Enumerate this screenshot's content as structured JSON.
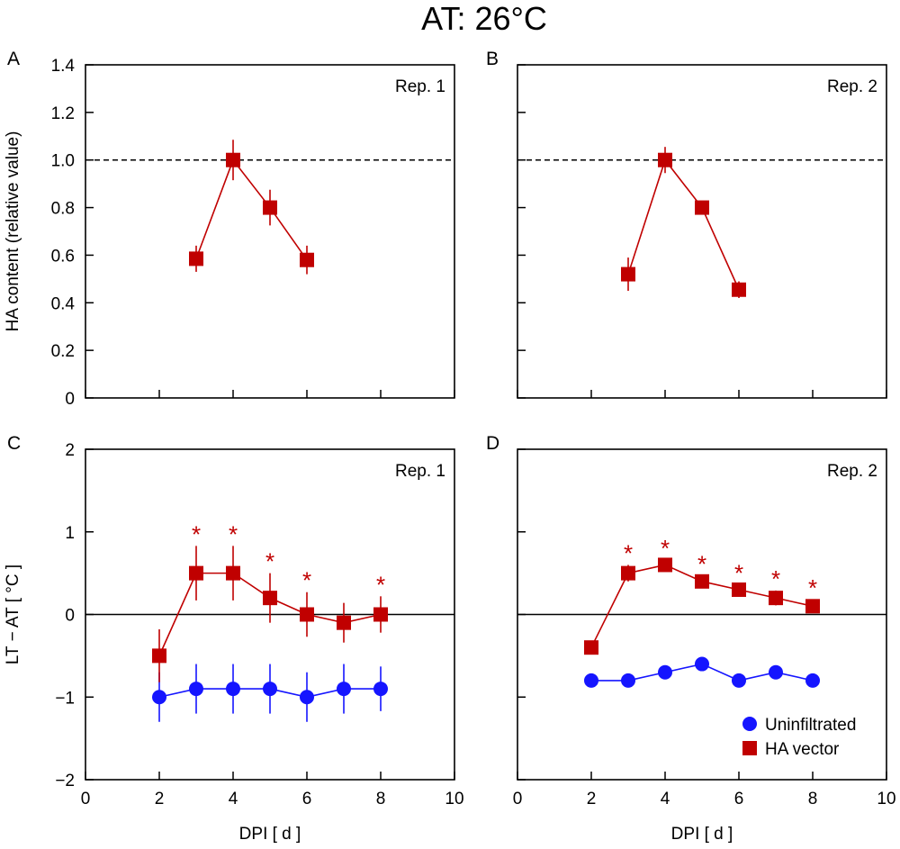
{
  "figure_title": "AT: 26°C",
  "colors": {
    "ha_vector": "#c00000",
    "uninfiltrated": "#1515ff",
    "axis": "#000000"
  },
  "legend": {
    "uninfiltrated": "Uninfiltrated",
    "ha_vector": "HA vector"
  },
  "chart_data": [
    {
      "id": "A",
      "type": "line",
      "panel_label": "A",
      "replicate_label": "Rep. 1",
      "ylabel": "HA content (relative value)",
      "xlabel": "",
      "xlim": [
        0,
        10
      ],
      "ylim": [
        0,
        1.4
      ],
      "xticks": [
        0,
        2,
        4,
        6,
        8,
        10
      ],
      "xtick_labels_shown": false,
      "yticks": [
        0,
        0.2,
        0.4,
        0.6,
        0.8,
        1.0,
        1.2,
        1.4
      ],
      "ytick_labels_shown": true,
      "ytick_labels": [
        "0",
        "0.2",
        "0.4",
        "0.6",
        "0.8",
        "1.0",
        "1.2",
        "1.4"
      ],
      "reference_line": {
        "y": 1.0,
        "style": "dashed"
      },
      "series": [
        {
          "name": "HA vector",
          "marker": "square",
          "x": [
            3,
            4,
            5,
            6
          ],
          "y": [
            0.585,
            1.0,
            0.8,
            0.58
          ],
          "err": [
            0.055,
            0.085,
            0.075,
            0.06
          ],
          "significant": []
        }
      ]
    },
    {
      "id": "B",
      "type": "line",
      "panel_label": "B",
      "replicate_label": "Rep. 2",
      "ylabel": "",
      "xlabel": "",
      "xlim": [
        0,
        10
      ],
      "ylim": [
        0,
        1.4
      ],
      "xticks": [
        0,
        2,
        4,
        6,
        8,
        10
      ],
      "xtick_labels_shown": false,
      "yticks": [
        0,
        0.2,
        0.4,
        0.6,
        0.8,
        1.0,
        1.2,
        1.4
      ],
      "ytick_labels_shown": false,
      "reference_line": {
        "y": 1.0,
        "style": "dashed"
      },
      "series": [
        {
          "name": "HA vector",
          "marker": "square",
          "x": [
            3,
            4,
            5,
            6
          ],
          "y": [
            0.52,
            1.0,
            0.8,
            0.455
          ],
          "err": [
            0.07,
            0.055,
            0.02,
            0.035
          ],
          "significant": []
        }
      ]
    },
    {
      "id": "C",
      "type": "line",
      "panel_label": "C",
      "replicate_label": "Rep. 1",
      "ylabel": "LT − AT [ °C ]",
      "xlabel": "DPI [ d ]",
      "xlim": [
        0,
        10
      ],
      "ylim": [
        -2,
        2
      ],
      "xticks": [
        0,
        2,
        4,
        6,
        8,
        10
      ],
      "xtick_labels_shown": true,
      "xtick_labels": [
        "0",
        "2",
        "4",
        "6",
        "8",
        "10"
      ],
      "yticks": [
        -2,
        -1,
        0,
        1,
        2
      ],
      "ytick_labels_shown": true,
      "ytick_labels": [
        "−2",
        "−1",
        "0",
        "1",
        "2"
      ],
      "reference_line": {
        "y": 0,
        "style": "solid"
      },
      "series": [
        {
          "name": "Uninfiltrated",
          "marker": "circle",
          "x": [
            2,
            3,
            4,
            5,
            6,
            7,
            8
          ],
          "y": [
            -1.0,
            -0.9,
            -0.9,
            -0.9,
            -1.0,
            -0.9,
            -0.9
          ],
          "err": [
            0.3,
            0.3,
            0.3,
            0.3,
            0.3,
            0.3,
            0.27
          ],
          "significant": []
        },
        {
          "name": "HA vector",
          "marker": "square",
          "x": [
            2,
            3,
            4,
            5,
            6,
            7,
            8
          ],
          "y": [
            -0.5,
            0.5,
            0.5,
            0.2,
            0.0,
            -0.1,
            0.0
          ],
          "err": [
            0.32,
            0.33,
            0.33,
            0.3,
            0.27,
            0.24,
            0.22
          ],
          "significant": [
            3,
            4,
            5,
            6,
            8
          ]
        }
      ],
      "significance_symbol": "*"
    },
    {
      "id": "D",
      "type": "line",
      "panel_label": "D",
      "replicate_label": "Rep. 2",
      "ylabel": "",
      "xlabel": "DPI [ d ]",
      "xlim": [
        0,
        10
      ],
      "ylim": [
        -2,
        2
      ],
      "xticks": [
        0,
        2,
        4,
        6,
        8,
        10
      ],
      "xtick_labels_shown": true,
      "xtick_labels": [
        "0",
        "2",
        "4",
        "6",
        "8",
        "10"
      ],
      "yticks": [
        -2,
        -1,
        0,
        1,
        2
      ],
      "ytick_labels_shown": false,
      "reference_line": {
        "y": 0,
        "style": "solid"
      },
      "legend_location": "bottom-right",
      "series": [
        {
          "name": "Uninfiltrated",
          "marker": "circle",
          "x": [
            2,
            3,
            4,
            5,
            6,
            7,
            8
          ],
          "y": [
            -0.8,
            -0.8,
            -0.7,
            -0.6,
            -0.8,
            -0.7,
            -0.8
          ],
          "err": [
            0.05,
            0.05,
            0.05,
            0.05,
            0.06,
            0.05,
            0.05
          ],
          "significant": []
        },
        {
          "name": "HA vector",
          "marker": "square",
          "x": [
            2,
            3,
            4,
            5,
            6,
            7,
            8
          ],
          "y": [
            -0.4,
            0.5,
            0.6,
            0.4,
            0.3,
            0.2,
            0.1
          ],
          "err": [
            0.04,
            0.1,
            0.06,
            0.07,
            0.06,
            0.09,
            0.08
          ],
          "significant": [
            3,
            4,
            5,
            6,
            7,
            8
          ]
        }
      ],
      "significance_symbol": "*"
    }
  ]
}
